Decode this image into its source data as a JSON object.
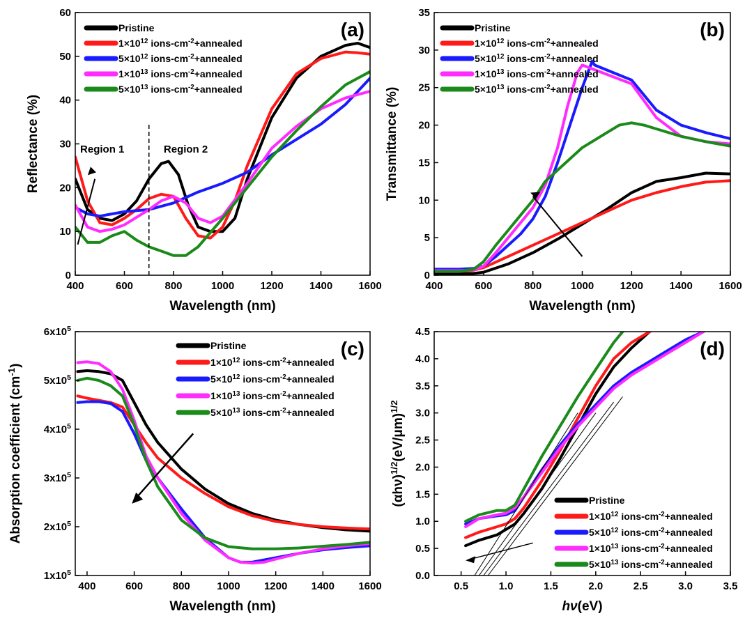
{
  "colors": {
    "pristine": "#000000",
    "d1e12": "#ff1a1a",
    "d5e12": "#1a1aff",
    "d1e13": "#ff2bff",
    "d5e13": "#1a8a1a"
  },
  "chart_data": [
    {
      "panel": "(a)",
      "type": "line",
      "xlabel": "Wavelength (nm)",
      "ylabel": "Reflectance (%)",
      "xlim": [
        400,
        1600
      ],
      "ylim": [
        0,
        60
      ],
      "xticks": [
        "400",
        "600",
        "800",
        "1000",
        "1200",
        "1400",
        "1600"
      ],
      "yticks": [
        "0",
        "10",
        "20",
        "30",
        "40",
        "50",
        "60"
      ],
      "legend": "top-left",
      "annotations": [
        "Region 1",
        "Region 2"
      ],
      "series": [
        {
          "name": "Pristine",
          "x": [
            400,
            450,
            500,
            550,
            600,
            650,
            700,
            750,
            780,
            820,
            860,
            900,
            950,
            1000,
            1050,
            1100,
            1200,
            1300,
            1400,
            1500,
            1550,
            1600
          ],
          "y": [
            22,
            15,
            13,
            12.5,
            14,
            17,
            22,
            25.5,
            26,
            23,
            16,
            11,
            10,
            10,
            13,
            22,
            36,
            45,
            50,
            52.5,
            53,
            52
          ]
        },
        {
          "name": "1×10¹² ions-cm⁻²+annealed",
          "x": [
            400,
            450,
            500,
            550,
            600,
            650,
            700,
            750,
            800,
            850,
            900,
            950,
            1000,
            1050,
            1100,
            1200,
            1300,
            1400,
            1500,
            1550,
            1600
          ],
          "y": [
            27,
            17,
            12,
            11.5,
            13,
            15,
            17.5,
            18.5,
            18,
            13,
            9,
            8.5,
            11,
            17,
            25,
            38,
            46,
            49.5,
            51,
            50.8,
            50.5
          ]
        },
        {
          "name": "5×10¹² ions-cm⁻²+annealed",
          "x": [
            400,
            450,
            500,
            550,
            600,
            700,
            800,
            900,
            1000,
            1100,
            1200,
            1300,
            1400,
            1500,
            1600
          ],
          "y": [
            15.5,
            14,
            13.5,
            14,
            14.5,
            15,
            16.5,
            19,
            21,
            23.5,
            27.5,
            31,
            34.5,
            39,
            45
          ]
        },
        {
          "name": "1×10¹³ ions-cm⁻²+annealed",
          "x": [
            400,
            450,
            500,
            550,
            600,
            700,
            750,
            800,
            850,
            900,
            950,
            1000,
            1100,
            1200,
            1300,
            1400,
            1500,
            1600
          ],
          "y": [
            16,
            11,
            10,
            10.5,
            11.5,
            15,
            17,
            18,
            16.5,
            13,
            12,
            13.5,
            21,
            29,
            34,
            38,
            40.5,
            42
          ]
        },
        {
          "name": "5×10¹³ ions-cm⁻²+annealed",
          "x": [
            400,
            450,
            500,
            550,
            600,
            650,
            700,
            750,
            800,
            850,
            900,
            1000,
            1100,
            1200,
            1300,
            1400,
            1500,
            1600
          ],
          "y": [
            11,
            7.5,
            7.5,
            9,
            10,
            8,
            6.5,
            5.5,
            4.5,
            4.5,
            6.5,
            13,
            20,
            27,
            33,
            38.5,
            43.5,
            46.5
          ]
        }
      ]
    },
    {
      "panel": "(b)",
      "type": "line",
      "xlabel": "Wavelength (nm)",
      "ylabel": "Transmittance (%)",
      "xlim": [
        400,
        1600
      ],
      "ylim": [
        0,
        35
      ],
      "xticks": [
        "400",
        "600",
        "800",
        "1000",
        "1200",
        "1400",
        "1600"
      ],
      "yticks": [
        "0",
        "5",
        "10",
        "15",
        "20",
        "25",
        "30",
        "35"
      ],
      "legend": "top-left",
      "series": [
        {
          "name": "Pristine",
          "x": [
            400,
            500,
            550,
            600,
            700,
            800,
            900,
            1000,
            1100,
            1200,
            1300,
            1400,
            1500,
            1600
          ],
          "y": [
            0.2,
            0.2,
            0.2,
            0.4,
            1.5,
            3,
            4.8,
            6.8,
            8.8,
            11,
            12.5,
            13,
            13.6,
            13.5
          ]
        },
        {
          "name": "1×10¹² ions-cm⁻²+annealed",
          "x": [
            400,
            500,
            550,
            600,
            700,
            800,
            900,
            1000,
            1100,
            1200,
            1300,
            1400,
            1500,
            1600
          ],
          "y": [
            0.5,
            0.5,
            0.6,
            1,
            2.5,
            4,
            5.5,
            7,
            8.5,
            10,
            11,
            11.8,
            12.4,
            12.6
          ]
        },
        {
          "name": "5×10¹² ions-cm⁻²+annealed",
          "x": [
            400,
            500,
            560,
            600,
            650,
            700,
            750,
            800,
            850,
            900,
            950,
            1000,
            1040,
            1050,
            1200,
            1300,
            1400,
            1500,
            1600
          ],
          "y": [
            0.8,
            0.8,
            0.9,
            1.2,
            2.5,
            4,
            5.5,
            7.5,
            10.5,
            15,
            20,
            25,
            28.5,
            28,
            26,
            22,
            20,
            19,
            18.2
          ]
        },
        {
          "name": "1×10¹³ ions-cm⁻²+annealed",
          "x": [
            400,
            500,
            560,
            600,
            650,
            700,
            750,
            800,
            850,
            900,
            940,
            980,
            1000,
            1200,
            1300,
            1400,
            1500,
            1600
          ],
          "y": [
            0.6,
            0.6,
            0.7,
            1.2,
            3,
            5,
            7,
            9,
            12,
            17,
            22.5,
            27,
            28,
            25.5,
            21,
            18.5,
            17.8,
            17.5
          ]
        },
        {
          "name": "5×10¹³ ions-cm⁻²+annealed",
          "x": [
            400,
            500,
            560,
            600,
            650,
            700,
            750,
            800,
            830,
            850,
            900,
            950,
            1000,
            1100,
            1150,
            1200,
            1250,
            1300,
            1400,
            1500,
            1600
          ],
          "y": [
            0.5,
            0.5,
            0.8,
            1.8,
            4,
            6,
            8,
            10,
            11.5,
            12.5,
            14,
            15.5,
            17,
            19,
            20,
            20.3,
            20,
            19.5,
            18.5,
            17.8,
            17.2
          ]
        }
      ]
    },
    {
      "panel": "(c)",
      "type": "line",
      "xlabel": "Wavelength (nm)",
      "ylabel": "Absorption coefficient (cm⁻¹)",
      "xlim": [
        350,
        1600
      ],
      "ylim": [
        100000,
        650000
      ],
      "xticks": [
        "400",
        "600",
        "800",
        "1000",
        "1200",
        "1400",
        "1600"
      ],
      "yticks": [
        "1x10⁵",
        "2x10⁵",
        "3x10⁵",
        "4x10⁵",
        "5x10⁵",
        "6x10⁵"
      ],
      "legend": "top-right",
      "series": [
        {
          "name": "Pristine",
          "x": [
            360,
            400,
            450,
            500,
            550,
            600,
            650,
            700,
            800,
            900,
            1000,
            1100,
            1200,
            1300,
            1400,
            1500,
            1600
          ],
          "y": [
            560000,
            562000,
            560000,
            555000,
            540000,
            490000,
            440000,
            400000,
            340000,
            295000,
            262000,
            240000,
            225000,
            215000,
            208000,
            203000,
            200000
          ]
        },
        {
          "name": "1×10¹² ions-cm⁻²+annealed",
          "x": [
            360,
            400,
            450,
            500,
            550,
            600,
            650,
            700,
            800,
            900,
            1000,
            1100,
            1200,
            1300,
            1400,
            1500,
            1600
          ],
          "y": [
            505000,
            500000,
            495000,
            490000,
            480000,
            440000,
            400000,
            365000,
            320000,
            285000,
            255000,
            235000,
            222000,
            215000,
            210000,
            207000,
            205000
          ]
        },
        {
          "name": "5×10¹² ions-cm⁻²+annealed",
          "x": [
            360,
            400,
            450,
            500,
            550,
            600,
            650,
            700,
            800,
            900,
            1000,
            1050,
            1100,
            1200,
            1300,
            1400,
            1500,
            1600
          ],
          "y": [
            490000,
            492000,
            492000,
            488000,
            470000,
            420000,
            360000,
            320000,
            250000,
            185000,
            140000,
            130000,
            130000,
            140000,
            150000,
            158000,
            163000,
            167000
          ]
        },
        {
          "name": "1×10¹³ ions-cm⁻²+annealed",
          "x": [
            360,
            400,
            450,
            500,
            550,
            600,
            650,
            700,
            800,
            900,
            1000,
            1050,
            1100,
            1150,
            1200,
            1300,
            1400,
            1500,
            1600
          ],
          "y": [
            580000,
            582000,
            578000,
            560000,
            520000,
            450000,
            370000,
            320000,
            240000,
            180000,
            140000,
            130000,
            128000,
            130000,
            137000,
            150000,
            160000,
            167000,
            172000
          ]
        },
        {
          "name": "5×10¹³ ions-cm⁻²+annealed",
          "x": [
            360,
            400,
            450,
            500,
            550,
            600,
            650,
            700,
            800,
            900,
            1000,
            1100,
            1200,
            1300,
            1400,
            1500,
            1600
          ],
          "y": [
            540000,
            545000,
            540000,
            528000,
            505000,
            440000,
            360000,
            300000,
            225000,
            185000,
            165000,
            160000,
            160000,
            162000,
            166000,
            170000,
            175000
          ]
        }
      ]
    },
    {
      "panel": "(d)",
      "type": "line",
      "xlabel": "hν(eV)",
      "ylabel": "(αhν)¹ᐟ²(eV/μm)¹ᐟ²",
      "xlim": [
        0.2,
        3.5
      ],
      "ylim": [
        0,
        4.5
      ],
      "xticks": [
        "0.5",
        "1.0",
        "1.5",
        "2.0",
        "2.5",
        "3.0",
        "3.5"
      ],
      "yticks": [
        "0.0",
        "0.5",
        "1.0",
        "1.5",
        "2.0",
        "2.5",
        "3.0",
        "3.5",
        "4.0",
        "4.5"
      ],
      "legend": "bottom-right",
      "series": [
        {
          "name": "Pristine",
          "x": [
            0.55,
            0.7,
            0.9,
            1.0,
            1.1,
            1.2,
            1.4,
            1.6,
            1.8,
            2.0,
            2.2,
            2.4,
            2.6,
            2.8,
            3.0
          ],
          "y": [
            0.55,
            0.65,
            0.75,
            0.85,
            0.95,
            1.15,
            1.6,
            2.15,
            2.75,
            3.35,
            3.85,
            4.2,
            4.5,
            4.7,
            4.9
          ]
        },
        {
          "name": "1×10¹² ions-cm⁻²+annealed",
          "x": [
            0.55,
            0.7,
            0.9,
            1.0,
            1.1,
            1.2,
            1.4,
            1.6,
            1.8,
            2.0,
            2.2,
            2.4,
            2.6,
            2.8
          ],
          "y": [
            0.7,
            0.8,
            0.9,
            0.95,
            1.05,
            1.25,
            1.75,
            2.3,
            2.9,
            3.5,
            4.0,
            4.3,
            4.5,
            4.7
          ]
        },
        {
          "name": "5×10¹² ions-cm⁻²+annealed",
          "x": [
            0.55,
            0.7,
            0.9,
            1.0,
            1.1,
            1.2,
            1.4,
            1.6,
            1.8,
            2.0,
            2.2,
            2.4,
            2.6,
            2.8,
            3.0,
            3.2
          ],
          "y": [
            0.95,
            1.05,
            1.1,
            1.12,
            1.2,
            1.45,
            1.95,
            2.4,
            2.8,
            3.15,
            3.5,
            3.75,
            3.95,
            4.15,
            4.35,
            4.5
          ]
        },
        {
          "name": "1×10¹³ ions-cm⁻²+annealed",
          "x": [
            0.55,
            0.7,
            0.9,
            1.0,
            1.1,
            1.2,
            1.4,
            1.6,
            1.8,
            2.0,
            2.2,
            2.4,
            2.6,
            2.8,
            3.0,
            3.2
          ],
          "y": [
            0.9,
            1.05,
            1.12,
            1.15,
            1.25,
            1.45,
            1.9,
            2.35,
            2.75,
            3.1,
            3.45,
            3.7,
            3.9,
            4.1,
            4.3,
            4.5
          ]
        },
        {
          "name": "5×10¹³ ions-cm⁻²+annealed",
          "x": [
            0.55,
            0.7,
            0.9,
            1.0,
            1.1,
            1.2,
            1.4,
            1.6,
            1.8,
            2.0,
            2.2,
            2.3,
            2.5
          ],
          "y": [
            1.0,
            1.12,
            1.2,
            1.2,
            1.3,
            1.6,
            2.2,
            2.75,
            3.3,
            3.8,
            4.3,
            4.5,
            4.7
          ]
        }
      ]
    }
  ]
}
